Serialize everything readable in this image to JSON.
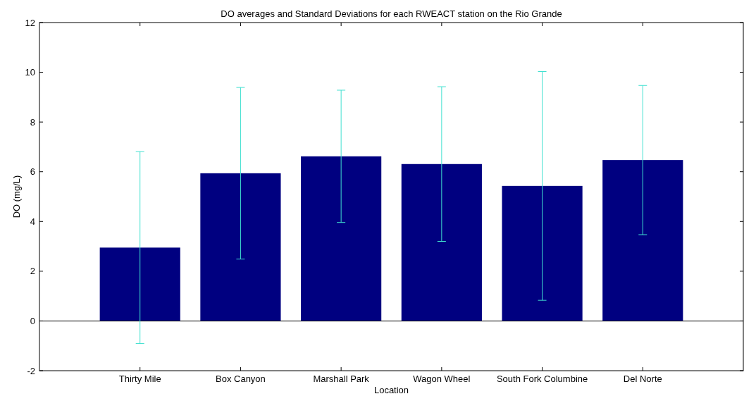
{
  "chart_data": {
    "type": "bar",
    "title": "DO averages and Standard Deviations for each RWEACT station on the Rio Grande",
    "xlabel": "Location",
    "ylabel": "DO (mg/L)",
    "categories": [
      "Thirty Mile",
      "Box Canyon",
      "Marshall Park",
      "Wagon Wheel",
      "South Fork Columbine",
      "Del Norte"
    ],
    "values": [
      2.95,
      5.94,
      6.62,
      6.31,
      5.43,
      6.47
    ],
    "errors": [
      3.86,
      3.45,
      2.66,
      3.11,
      4.6,
      3.0
    ],
    "color": "#000080",
    "ylim": [
      -2,
      12
    ],
    "yticks": [
      -2,
      0,
      2,
      4,
      6,
      8,
      10,
      12
    ],
    "ref_lines": [
      {
        "axis": "y",
        "value": 0,
        "color": "#000000"
      }
    ]
  }
}
